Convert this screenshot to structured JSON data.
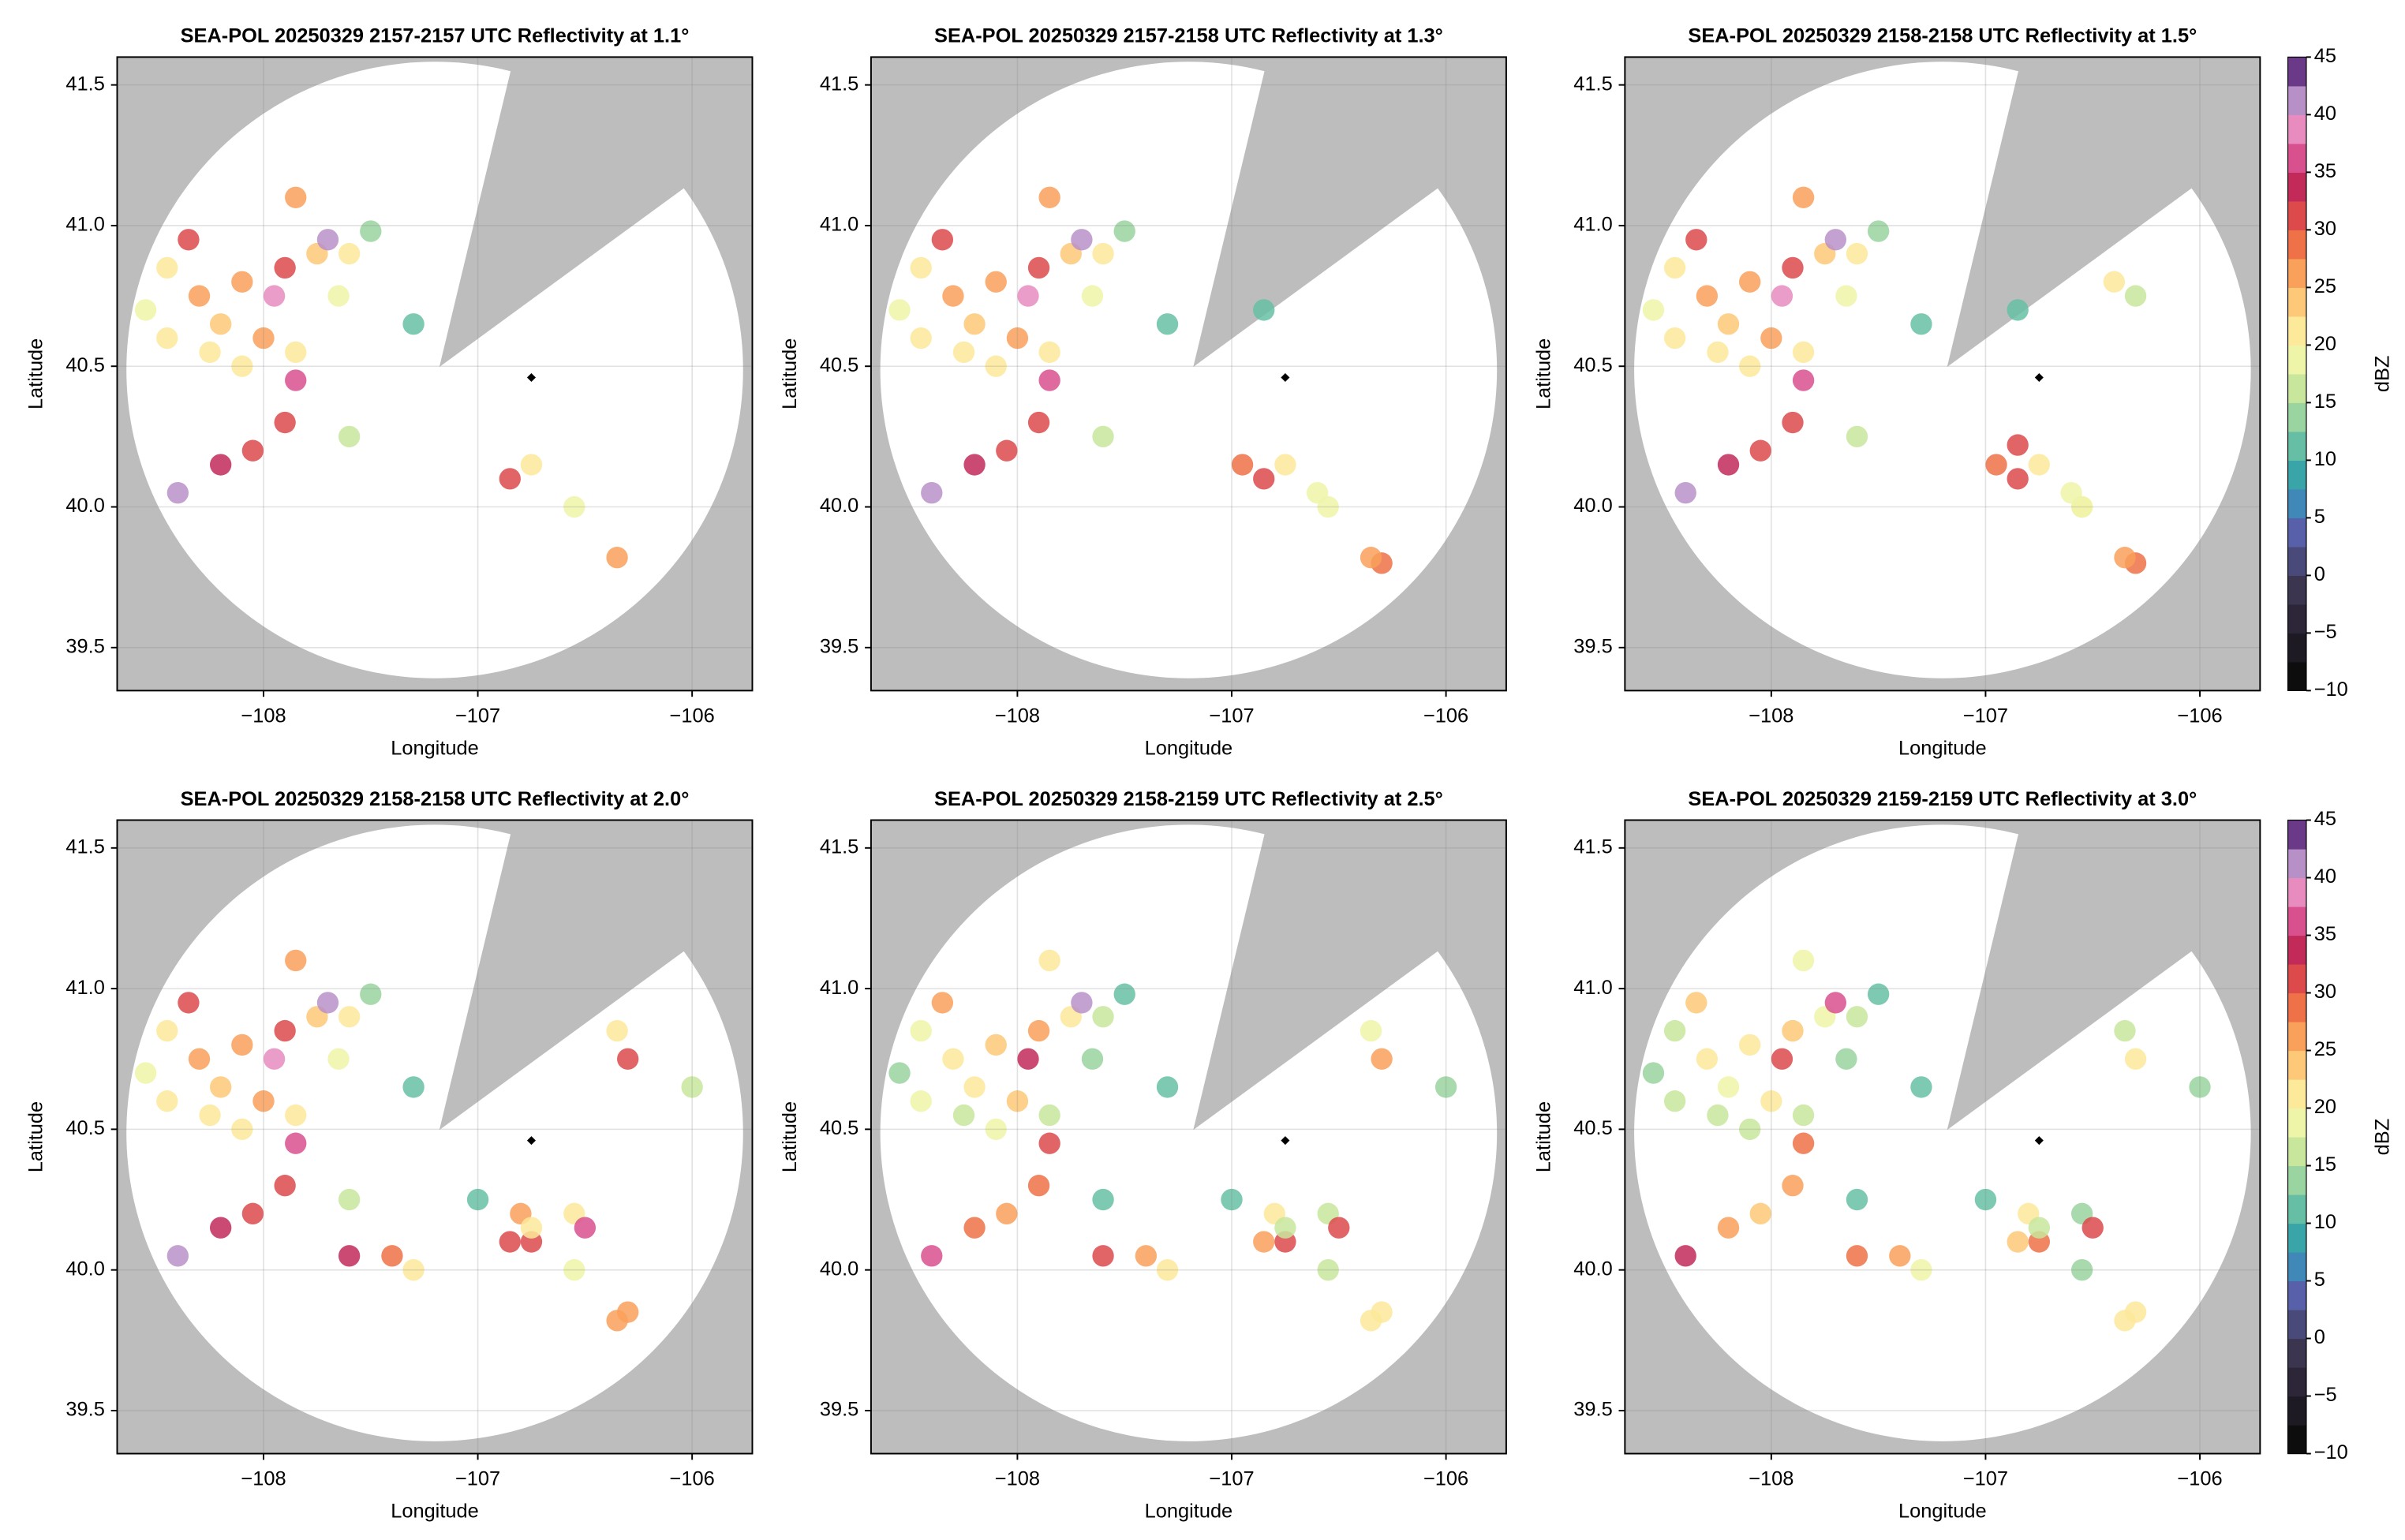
{
  "chart_data": [
    {
      "type": "radar",
      "title": "SEA-POL 20250329 2157-2157 UTC Reflectivity at 1.1°",
      "xlabel": "Longitude",
      "ylabel": "Latitude",
      "xlim": [
        -108.683,
        -105.719
      ],
      "ylim": [
        39.347,
        41.599
      ],
      "xticks": [
        {
          "value": -108,
          "label": "−108"
        },
        {
          "value": -107,
          "label": "−107"
        },
        {
          "value": -106,
          "label": "−106"
        }
      ],
      "yticks": [
        39.5,
        {
          "value": 40,
          "label": "40.0"
        },
        40.5,
        {
          "value": 41,
          "label": "41.0"
        },
        41.5
      ],
      "grid": true,
      "site_x": -106.75,
      "site_y": 40.46,
      "x": [
        -107.5,
        -107.6,
        -107.3,
        -106.55,
        -108.55,
        -107.65,
        -107.85,
        -107.6,
        -106.75,
        -108.25,
        -108.45,
        -108.45,
        -108.1,
        -108.2,
        -107.75,
        -108.3,
        -107.85,
        -108.0,
        -106.35,
        -108.1,
        -107.9,
        -108.35,
        -108.05,
        -106.85,
        -107.9,
        -108.2,
        -107.85,
        -107.95,
        -108.4,
        -107.7
      ],
      "y": [
        40.98,
        40.25,
        40.65,
        40.0,
        40.7,
        40.75,
        40.55,
        40.9,
        40.15,
        40.55,
        40.85,
        40.6,
        40.5,
        40.65,
        40.9,
        40.75,
        41.1,
        40.6,
        39.82,
        40.8,
        40.85,
        40.95,
        40.2,
        40.1,
        40.3,
        40.15,
        40.45,
        40.75,
        40.05,
        40.95
      ],
      "values": [
        14,
        15,
        12,
        18,
        18,
        18,
        20,
        20,
        20,
        20,
        22,
        22,
        22,
        24,
        24,
        25,
        25,
        26,
        26,
        27,
        30,
        30,
        30,
        30,
        32,
        33,
        35,
        38,
        40,
        42
      ]
    },
    {
      "type": "radar",
      "title": "SEA-POL 20250329 2157-2158 UTC Reflectivity at 1.3°",
      "xlabel": "Longitude",
      "ylabel": "Latitude",
      "xlim": [
        -108.683,
        -105.719
      ],
      "ylim": [
        39.347,
        41.599
      ],
      "xticks": [
        {
          "value": -108,
          "label": "−108"
        },
        {
          "value": -107,
          "label": "−107"
        },
        {
          "value": -106,
          "label": "−106"
        }
      ],
      "yticks": [
        39.5,
        {
          "value": 40,
          "label": "40.0"
        },
        40.5,
        {
          "value": 41,
          "label": "41.0"
        },
        41.5
      ],
      "grid": true,
      "site_x": -106.75,
      "site_y": 40.46,
      "x": [
        -106.85,
        -106.6,
        -106.95,
        -106.3,
        -107.5,
        -107.6,
        -107.3,
        -106.55,
        -108.55,
        -107.65,
        -107.85,
        -107.6,
        -106.75,
        -108.25,
        -108.45,
        -108.45,
        -108.1,
        -108.2,
        -107.75,
        -108.3,
        -107.85,
        -108.0,
        -106.35,
        -108.1,
        -107.9,
        -108.35,
        -108.05,
        -106.85,
        -107.9,
        -108.2,
        -107.85,
        -107.95,
        -108.4,
        -107.7
      ],
      "y": [
        40.7,
        40.05,
        40.15,
        39.8,
        40.98,
        40.25,
        40.65,
        40.0,
        40.7,
        40.75,
        40.55,
        40.9,
        40.15,
        40.55,
        40.85,
        40.6,
        40.5,
        40.65,
        40.9,
        40.75,
        41.1,
        40.6,
        39.82,
        40.8,
        40.85,
        40.95,
        40.2,
        40.1,
        40.3,
        40.15,
        40.45,
        40.75,
        40.05,
        40.95
      ],
      "values": [
        12,
        18,
        28,
        28,
        14,
        15,
        12,
        18,
        18,
        18,
        20,
        20,
        20,
        20,
        22,
        22,
        22,
        24,
        24,
        25,
        25,
        26,
        26,
        27,
        30,
        30,
        30,
        30,
        32,
        33,
        35,
        38,
        40,
        42
      ]
    },
    {
      "type": "radar",
      "title": "SEA-POL 20250329 2158-2158 UTC Reflectivity at 1.5°",
      "xlabel": "Longitude",
      "ylabel": "Latitude",
      "xlim": [
        -108.683,
        -105.719
      ],
      "ylim": [
        39.347,
        41.599
      ],
      "xticks": [
        {
          "value": -108,
          "label": "−108"
        },
        {
          "value": -107,
          "label": "−107"
        },
        {
          "value": -106,
          "label": "−106"
        }
      ],
      "yticks": [
        39.5,
        {
          "value": 40,
          "label": "40.0"
        },
        40.5,
        {
          "value": 41,
          "label": "41.0"
        },
        41.5
      ],
      "grid": true,
      "site_x": -106.75,
      "site_y": 40.46,
      "x": [
        -106.3,
        -106.4,
        -106.55,
        -106.85,
        -106.85,
        -106.6,
        -106.95,
        -106.3,
        -107.5,
        -107.6,
        -107.3,
        -106.55,
        -108.55,
        -107.65,
        -107.85,
        -107.6,
        -106.75,
        -108.25,
        -108.45,
        -108.45,
        -108.1,
        -108.2,
        -107.75,
        -108.3,
        -107.85,
        -108.0,
        -106.35,
        -108.1,
        -107.9,
        -108.35,
        -108.05,
        -106.85,
        -107.9,
        -108.2,
        -107.85,
        -107.95,
        -108.4,
        -107.7
      ],
      "y": [
        40.75,
        40.8,
        40.0,
        40.22,
        40.7,
        40.05,
        40.15,
        39.8,
        40.98,
        40.25,
        40.65,
        40.0,
        40.7,
        40.75,
        40.55,
        40.9,
        40.15,
        40.55,
        40.85,
        40.6,
        40.5,
        40.65,
        40.9,
        40.75,
        41.1,
        40.6,
        39.82,
        40.8,
        40.85,
        40.95,
        40.2,
        40.1,
        40.3,
        40.15,
        40.45,
        40.75,
        40.05,
        40.95
      ],
      "values": [
        15,
        20,
        22,
        30,
        12,
        18,
        28,
        28,
        14,
        15,
        12,
        18,
        18,
        18,
        20,
        20,
        20,
        20,
        22,
        22,
        22,
        24,
        24,
        25,
        25,
        26,
        26,
        27,
        30,
        30,
        30,
        30,
        32,
        33,
        35,
        38,
        40,
        42
      ]
    },
    {
      "type": "radar",
      "title": "SEA-POL 20250329 2158-2158 UTC Reflectivity at 2.0°",
      "xlabel": "Longitude",
      "ylabel": "Latitude",
      "xlim": [
        -108.683,
        -105.719
      ],
      "ylim": [
        39.347,
        41.599
      ],
      "xticks": [
        {
          "value": -108,
          "label": "−108"
        },
        {
          "value": -107,
          "label": "−107"
        },
        {
          "value": -106,
          "label": "−106"
        }
      ],
      "yticks": [
        39.5,
        {
          "value": 40,
          "label": "40.0"
        },
        40.5,
        {
          "value": 41,
          "label": "41.0"
        },
        41.5
      ],
      "grid": true,
      "site_x": -106.75,
      "site_y": 40.46,
      "x": [
        -107.0,
        -106.8,
        -106.75,
        -106.55,
        -106.5,
        -106.3,
        -106.35,
        -106.0,
        -107.4,
        -107.6,
        -107.3,
        -106.3,
        -107.5,
        -107.6,
        -107.3,
        -106.55,
        -108.55,
        -107.65,
        -107.85,
        -107.6,
        -106.75,
        -108.25,
        -108.45,
        -108.45,
        -108.1,
        -108.2,
        -107.75,
        -108.3,
        -107.85,
        -108.0,
        -106.35,
        -108.1,
        -107.9,
        -108.35,
        -108.05,
        -106.85,
        -107.9,
        -108.2,
        -107.85,
        -107.95,
        -108.4,
        -107.7
      ],
      "y": [
        40.25,
        40.2,
        40.1,
        40.2,
        40.15,
        40.75,
        40.85,
        40.65,
        40.05,
        40.05,
        40.0,
        39.85,
        40.98,
        40.25,
        40.65,
        40.0,
        40.7,
        40.75,
        40.55,
        40.9,
        40.15,
        40.55,
        40.85,
        40.6,
        40.5,
        40.65,
        40.9,
        40.75,
        41.1,
        40.6,
        39.82,
        40.8,
        40.85,
        40.95,
        40.2,
        40.1,
        40.3,
        40.15,
        40.45,
        40.75,
        40.05,
        40.95
      ],
      "values": [
        12,
        25,
        32,
        20,
        35,
        30,
        22,
        15,
        28,
        33,
        22,
        25,
        14,
        15,
        12,
        18,
        18,
        18,
        20,
        20,
        20,
        20,
        22,
        22,
        22,
        24,
        24,
        25,
        25,
        26,
        26,
        27,
        30,
        30,
        30,
        30,
        32,
        33,
        35,
        38,
        40,
        42
      ]
    },
    {
      "type": "radar",
      "title": "SEA-POL 20250329 2158-2159 UTC Reflectivity at 2.5°",
      "xlabel": "Longitude",
      "ylabel": "Latitude",
      "xlim": [
        -108.683,
        -105.719
      ],
      "ylim": [
        39.347,
        41.599
      ],
      "xticks": [
        {
          "value": -108,
          "label": "−108"
        },
        {
          "value": -107,
          "label": "−107"
        },
        {
          "value": -106,
          "label": "−106"
        }
      ],
      "yticks": [
        39.5,
        {
          "value": 40,
          "label": "40.0"
        },
        40.5,
        {
          "value": 41,
          "label": "41.0"
        },
        41.5
      ],
      "grid": true,
      "site_x": -106.75,
      "site_y": 40.46,
      "x": [
        -107.0,
        -106.8,
        -106.75,
        -106.55,
        -106.5,
        -106.3,
        -106.35,
        -106.0,
        -107.4,
        -107.6,
        -107.3,
        -106.3,
        -107.5,
        -107.6,
        -107.3,
        -106.55,
        -108.55,
        -107.65,
        -107.85,
        -107.6,
        -106.75,
        -108.25,
        -108.45,
        -108.45,
        -108.1,
        -108.2,
        -107.75,
        -108.3,
        -107.85,
        -108.0,
        -106.35,
        -108.1,
        -107.9,
        -108.35,
        -108.05,
        -106.85,
        -107.9,
        -108.2,
        -107.85,
        -107.95,
        -108.4,
        -107.7
      ],
      "y": [
        40.25,
        40.2,
        40.1,
        40.2,
        40.15,
        40.75,
        40.85,
        40.65,
        40.05,
        40.05,
        40.0,
        39.85,
        40.98,
        40.25,
        40.65,
        40.0,
        40.7,
        40.75,
        40.55,
        40.9,
        40.15,
        40.55,
        40.85,
        40.6,
        40.5,
        40.65,
        40.9,
        40.75,
        41.1,
        40.6,
        39.82,
        40.8,
        40.85,
        40.95,
        40.2,
        40.1,
        40.3,
        40.15,
        40.45,
        40.75,
        40.05,
        40.95
      ],
      "values": [
        10,
        22,
        30,
        16,
        32,
        25,
        18,
        14,
        26,
        30,
        20,
        22,
        12,
        12,
        10,
        15,
        14,
        14,
        16,
        16,
        16,
        16,
        18,
        18,
        18,
        20,
        20,
        22,
        20,
        24,
        22,
        24,
        26,
        26,
        26,
        26,
        28,
        29,
        30,
        34,
        36,
        40
      ]
    },
    {
      "type": "radar",
      "title": "SEA-POL 20250329 2159-2159 UTC Reflectivity at 3.0°",
      "xlabel": "Longitude",
      "ylabel": "Latitude",
      "xlim": [
        -108.683,
        -105.719
      ],
      "ylim": [
        39.347,
        41.599
      ],
      "xticks": [
        {
          "value": -108,
          "label": "−108"
        },
        {
          "value": -107,
          "label": "−107"
        },
        {
          "value": -106,
          "label": "−106"
        }
      ],
      "yticks": [
        39.5,
        {
          "value": 40,
          "label": "40.0"
        },
        40.5,
        {
          "value": 41,
          "label": "41.0"
        },
        41.5
      ],
      "grid": true,
      "site_x": -106.75,
      "site_y": 40.46,
      "x": [
        -107.0,
        -106.8,
        -106.75,
        -106.55,
        -106.5,
        -106.3,
        -106.35,
        -106.0,
        -107.4,
        -107.6,
        -107.3,
        -106.3,
        -107.5,
        -107.6,
        -107.3,
        -106.55,
        -108.55,
        -107.65,
        -107.85,
        -107.6,
        -106.75,
        -108.25,
        -108.45,
        -108.45,
        -108.1,
        -108.2,
        -107.75,
        -108.3,
        -107.85,
        -108.0,
        -106.35,
        -108.1,
        -107.9,
        -108.35,
        -108.05,
        -106.85,
        -107.9,
        -108.2,
        -107.85,
        -107.95,
        -108.4,
        -107.7
      ],
      "y": [
        40.25,
        40.2,
        40.1,
        40.2,
        40.15,
        40.75,
        40.85,
        40.65,
        40.05,
        40.05,
        40.0,
        39.85,
        40.98,
        40.25,
        40.65,
        40.0,
        40.7,
        40.75,
        40.55,
        40.9,
        40.15,
        40.55,
        40.85,
        40.6,
        40.5,
        40.65,
        40.9,
        40.75,
        41.1,
        40.6,
        39.82,
        40.8,
        40.85,
        40.95,
        40.2,
        40.1,
        40.3,
        40.15,
        40.45,
        40.75,
        40.05,
        40.95
      ],
      "values": [
        10,
        20,
        28,
        14,
        30,
        22,
        16,
        14,
        25,
        28,
        18,
        20,
        12,
        12,
        10,
        14,
        14,
        14,
        15,
        15,
        15,
        15,
        16,
        16,
        17,
        18,
        18,
        20,
        18,
        22,
        20,
        22,
        24,
        24,
        24,
        24,
        26,
        27,
        28,
        30,
        34,
        36
      ]
    }
  ],
  "colorbar": {
    "label": "dBZ",
    "lim": [
      -10,
      45
    ],
    "ticks": [
      {
        "value": -10,
        "label": "−10"
      },
      {
        "value": -5,
        "label": "−5"
      },
      0,
      5,
      10,
      15,
      20,
      25,
      30,
      35,
      40,
      45
    ],
    "colors": [
      "#0d0d0d",
      "#1e1a24",
      "#2c2638",
      "#3b3550",
      "#4a4a7a",
      "#5760a8",
      "#3f88b8",
      "#3aa5a8",
      "#66bfa5",
      "#9ad4a0",
      "#c8e69c",
      "#eef5a8",
      "#fde99a",
      "#fdc877",
      "#f9a05a",
      "#ef7147",
      "#dc4a4c",
      "#c22a5a",
      "#d9508f",
      "#e88cc0",
      "#b890c8",
      "#6a3a88"
    ]
  }
}
